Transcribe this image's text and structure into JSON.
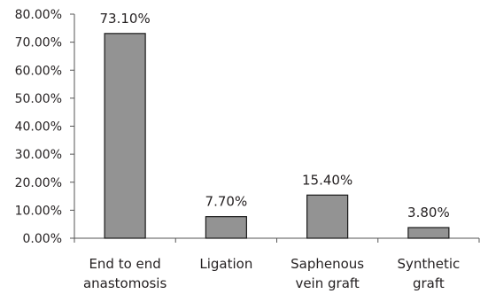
{
  "chart_data": {
    "type": "bar",
    "title": "",
    "xlabel": "",
    "ylabel": "",
    "categories": [
      [
        "End to end",
        "anastomosis"
      ],
      [
        "Ligation"
      ],
      [
        "Saphenous",
        "vein graft"
      ],
      [
        "Synthetic",
        "graft"
      ]
    ],
    "values": [
      73.1,
      7.7,
      15.4,
      3.8
    ],
    "value_labels": [
      "73.10%",
      "7.70%",
      "15.40%",
      "3.80%"
    ],
    "ylim": [
      0,
      80
    ],
    "yticks": [
      0,
      10,
      20,
      30,
      40,
      50,
      60,
      70,
      80
    ],
    "ytick_labels": [
      "0.00%",
      "10.00%",
      "20.00%",
      "30.00%",
      "40.00%",
      "50.00%",
      "60.00%",
      "70.00%",
      "80.00%"
    ],
    "grid": false,
    "legend": "none",
    "bar_color": "#939393",
    "bar_edge_color": "#1a1a1a"
  }
}
